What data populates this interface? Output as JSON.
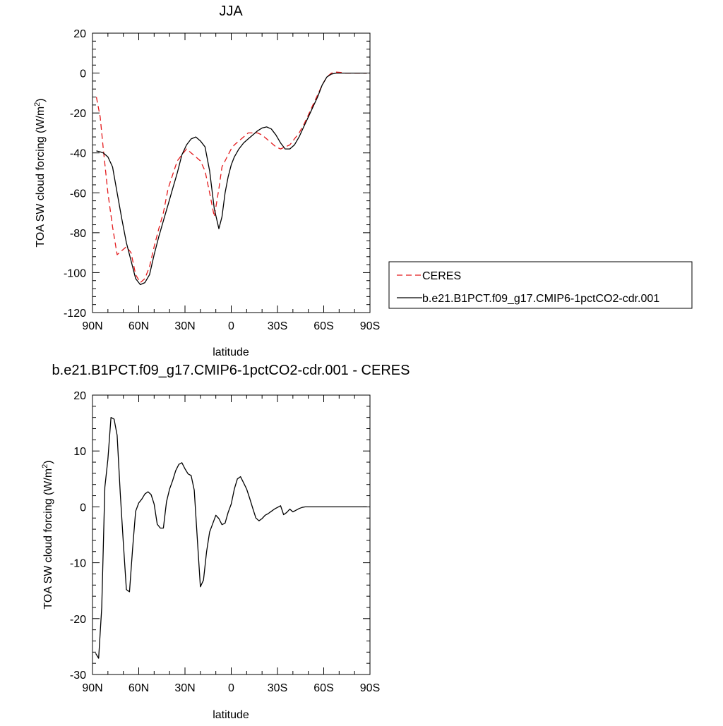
{
  "chart_data": [
    {
      "type": "line",
      "title": "JJA",
      "xlabel": "latitude",
      "ylabel": "TOA SW cloud forcing (W/m²)",
      "ylabel_prefix": "TOA SW cloud forcing (W/m",
      "ylabel_sup": "2",
      "ylabel_suffix": ")",
      "xlim": [
        90,
        -90
      ],
      "ylim": [
        -120,
        20
      ],
      "yticks": [
        20,
        0,
        -20,
        -40,
        -60,
        -80,
        -100,
        -120
      ],
      "ytick_labels": [
        "20",
        "0",
        "-20",
        "-40",
        "-60",
        "-80",
        "-100",
        "-120"
      ],
      "xticks": [
        90,
        60,
        30,
        0,
        -30,
        -60,
        -90
      ],
      "xtick_labels": [
        "90N",
        "60N",
        "30N",
        "0",
        "30S",
        "60S",
        "90S"
      ],
      "grid": false,
      "legend_position": "right",
      "series": [
        {
          "name": "CERES",
          "color": "#e41a1c",
          "dash": "dashed",
          "x": [
            87.5,
            85,
            83,
            80,
            77,
            74,
            71,
            68,
            65,
            62,
            59,
            56,
            53,
            50,
            47,
            44,
            41,
            38,
            35,
            32,
            29,
            26,
            23,
            20,
            17,
            14,
            11,
            8,
            6,
            4,
            2,
            0,
            -2,
            -5,
            -8,
            -11,
            -14,
            -17,
            -20,
            -23,
            -26,
            -29,
            -32,
            -35,
            -38,
            -41,
            -44,
            -47,
            -50,
            -53,
            -56,
            -59,
            -62,
            -65,
            -68,
            -71,
            -74,
            -77,
            -80,
            -85,
            -88
          ],
          "y": [
            -12,
            -22,
            -38,
            -60,
            -77,
            -91,
            -89,
            -87,
            -90,
            -101,
            -105,
            -103,
            -97,
            -87,
            -78,
            -70,
            -58,
            -51,
            -44,
            -41,
            -38,
            -40,
            -42,
            -44,
            -49,
            -60,
            -72,
            -58,
            -47,
            -44,
            -41,
            -38,
            -36,
            -34,
            -32,
            -30,
            -30,
            -30,
            -31,
            -33,
            -35,
            -37,
            -38,
            -37,
            -36,
            -33,
            -30,
            -26,
            -21,
            -16,
            -11,
            -6,
            -2,
            0,
            0.5,
            0.3,
            0,
            0,
            0,
            0,
            0
          ]
        },
        {
          "name": "b.e21.B1PCT.f09_g17.CMIP6-1pctCO2-cdr.001",
          "color": "#000000",
          "dash": "solid",
          "x": [
            87.5,
            85,
            83,
            80,
            77,
            74,
            71,
            68,
            65,
            62,
            59,
            56,
            53,
            50,
            47,
            44,
            41,
            38,
            35,
            32,
            29,
            26,
            23,
            20,
            17,
            14,
            11,
            8,
            6,
            4,
            2,
            0,
            -2,
            -5,
            -8,
            -11,
            -14,
            -17,
            -20,
            -23,
            -26,
            -29,
            -32,
            -35,
            -38,
            -41,
            -44,
            -47,
            -50,
            -53,
            -56,
            -59,
            -62,
            -65,
            -68,
            -71,
            -74,
            -77,
            -80,
            -85,
            -88
          ],
          "y": [
            -39,
            -39.5,
            -40,
            -42,
            -47,
            -60,
            -73,
            -85,
            -94,
            -103,
            -106,
            -105,
            -101,
            -91,
            -82,
            -74,
            -66,
            -58,
            -50,
            -41,
            -36,
            -33,
            -32,
            -34,
            -37,
            -49,
            -68,
            -78,
            -72,
            -60,
            -52,
            -46,
            -42,
            -38,
            -35,
            -33,
            -31,
            -29,
            -27.5,
            -27,
            -28,
            -31,
            -35,
            -38,
            -38,
            -36,
            -32,
            -27,
            -22,
            -17,
            -12,
            -6,
            -2,
            -0.5,
            0,
            0,
            0,
            0,
            0,
            0,
            0
          ]
        }
      ]
    },
    {
      "type": "line",
      "title": "b.e21.B1PCT.f09_g17.CMIP6-1pctCO2-cdr.001 - CERES",
      "xlabel": "latitude",
      "ylabel": "TOA SW cloud forcing (W/m²)",
      "ylabel_prefix": "TOA SW cloud forcing (W/m",
      "ylabel_sup": "2",
      "ylabel_suffix": ")",
      "xlim": [
        90,
        -90
      ],
      "ylim": [
        -30,
        20
      ],
      "yticks": [
        20,
        10,
        0,
        -10,
        -20,
        -30
      ],
      "ytick_labels": [
        "20",
        "10",
        "0",
        "-10",
        "-20",
        "-30"
      ],
      "xticks": [
        90,
        60,
        30,
        0,
        -30,
        -60,
        -90
      ],
      "xtick_labels": [
        "90N",
        "60N",
        "30N",
        "0",
        "30S",
        "60S",
        "90S"
      ],
      "grid": false,
      "series": [
        {
          "color": "#000000",
          "dash": "solid",
          "x": [
            88,
            86,
            84,
            82,
            80,
            78,
            76,
            74,
            72,
            70,
            68,
            66,
            64,
            62,
            60,
            58,
            56,
            54,
            52,
            50,
            48,
            46,
            44,
            42,
            40,
            38,
            36,
            34,
            32,
            30,
            28,
            26,
            24,
            22,
            20,
            18,
            16,
            14,
            12,
            10,
            8,
            6,
            4,
            2,
            0,
            -2,
            -4,
            -6,
            -8,
            -10,
            -12,
            -14,
            -16,
            -18,
            -20,
            -22,
            -24,
            -26,
            -28,
            -30,
            -32,
            -34,
            -36,
            -38,
            -40,
            -42,
            -44,
            -46,
            -48,
            -50,
            -52,
            -54,
            -56,
            -58,
            -60,
            -62,
            -64,
            -66,
            -68,
            -70,
            -72,
            -74,
            -76,
            -78,
            -80,
            -82,
            -84,
            -86,
            -88
          ],
          "y": [
            -26.2,
            -27.1,
            -18,
            3.5,
            8.5,
            16,
            15.7,
            12.8,
            2.5,
            -6.5,
            -14.8,
            -15.2,
            -7.5,
            -0.8,
            0.7,
            1.4,
            2.3,
            2.7,
            2.2,
            0.5,
            -3.1,
            -3.8,
            -3.8,
            0.9,
            3.2,
            4.7,
            6.5,
            7.6,
            7.9,
            6.8,
            5.9,
            5.6,
            3,
            -5.8,
            -14.3,
            -13.1,
            -8,
            -4.5,
            -3,
            -1.5,
            -2.1,
            -3.2,
            -2.9,
            -1,
            0.5,
            3.2,
            5,
            5.4,
            4.3,
            3.2,
            1.5,
            -0.3,
            -2,
            -2.5,
            -2.1,
            -1.5,
            -1.2,
            -0.8,
            -0.4,
            -0.1,
            0.2,
            -1.4,
            -1,
            -0.4,
            -0.9,
            -0.6,
            -0.3,
            -0.1,
            0,
            0,
            0,
            0,
            0,
            0,
            0,
            0,
            0,
            0,
            0,
            0,
            0,
            0,
            0,
            0,
            0,
            0,
            0,
            0,
            0
          ]
        }
      ]
    }
  ]
}
